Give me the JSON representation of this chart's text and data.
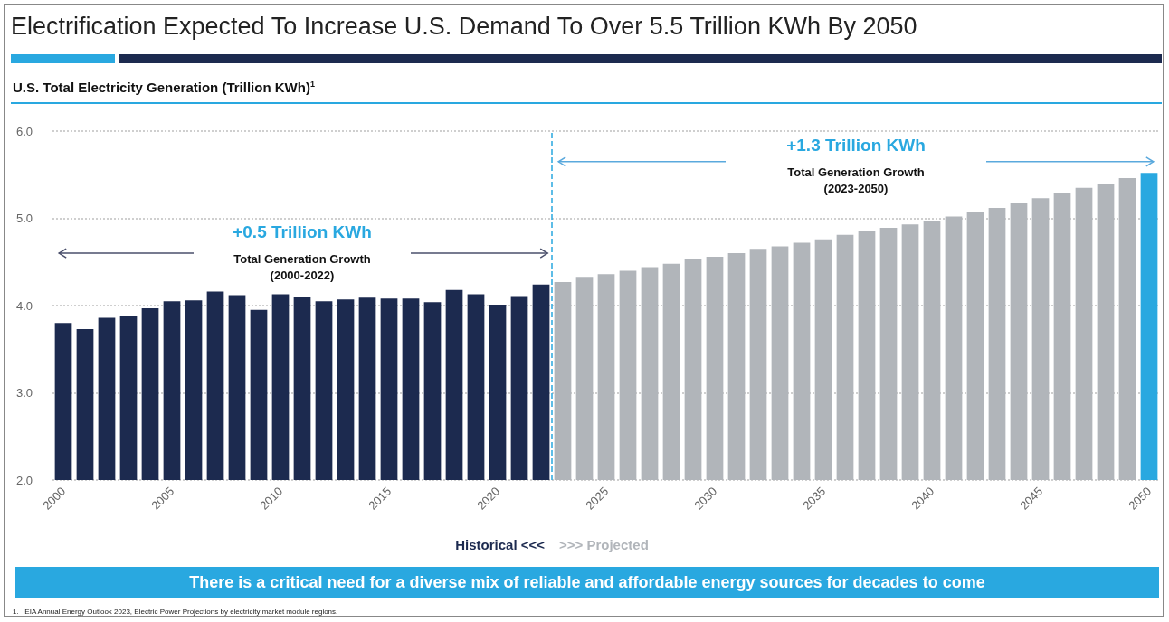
{
  "chart_data": {
    "type": "bar",
    "title": "Electrification Expected To Increase U.S. Demand To Over 5.5 Trillion KWh By 2050",
    "subtitle": "U.S. Total Electricity Generation (Trillion KWh)$^{1}$",
    "x": [
      2000,
      2001,
      2002,
      2003,
      2004,
      2005,
      2006,
      2007,
      2008,
      2009,
      2010,
      2011,
      2012,
      2013,
      2014,
      2015,
      2016,
      2017,
      2018,
      2019,
      2020,
      2021,
      2022,
      2023,
      2024,
      2025,
      2026,
      2027,
      2028,
      2029,
      2030,
      2031,
      2032,
      2033,
      2034,
      2035,
      2036,
      2037,
      2038,
      2039,
      2040,
      2041,
      2042,
      2043,
      2044,
      2045,
      2046,
      2047,
      2048,
      2049,
      2050
    ],
    "values": [
      3.8,
      3.73,
      3.86,
      3.88,
      3.97,
      4.05,
      4.06,
      4.16,
      4.12,
      3.95,
      4.13,
      4.1,
      4.05,
      4.07,
      4.09,
      4.08,
      4.08,
      4.04,
      4.18,
      4.13,
      4.01,
      4.11,
      4.24,
      4.27,
      4.33,
      4.36,
      4.4,
      4.44,
      4.48,
      4.53,
      4.56,
      4.6,
      4.65,
      4.68,
      4.72,
      4.76,
      4.81,
      4.85,
      4.89,
      4.93,
      4.97,
      5.02,
      5.07,
      5.12,
      5.18,
      5.23,
      5.29,
      5.35,
      5.4,
      5.46,
      5.52
    ],
    "colors": [
      "#1c2a4f",
      "#1c2a4f",
      "#1c2a4f",
      "#1c2a4f",
      "#1c2a4f",
      "#1c2a4f",
      "#1c2a4f",
      "#1c2a4f",
      "#1c2a4f",
      "#1c2a4f",
      "#1c2a4f",
      "#1c2a4f",
      "#1c2a4f",
      "#1c2a4f",
      "#1c2a4f",
      "#1c2a4f",
      "#1c2a4f",
      "#1c2a4f",
      "#1c2a4f",
      "#1c2a4f",
      "#1c2a4f",
      "#1c2a4f",
      "#1c2a4f",
      "#b1b5ba",
      "#b1b5ba",
      "#b1b5ba",
      "#b1b5ba",
      "#b1b5ba",
      "#b1b5ba",
      "#b1b5ba",
      "#b1b5ba",
      "#b1b5ba",
      "#b1b5ba",
      "#b1b5ba",
      "#b1b5ba",
      "#b1b5ba",
      "#b1b5ba",
      "#b1b5ba",
      "#b1b5ba",
      "#b1b5ba",
      "#b1b5ba",
      "#b1b5ba",
      "#b1b5ba",
      "#b1b5ba",
      "#b1b5ba",
      "#b1b5ba",
      "#b1b5ba",
      "#b1b5ba",
      "#b1b5ba",
      "#b1b5ba",
      "#29a8e0"
    ],
    "xlim": [
      1999.5,
      2050.5
    ],
    "xticks": [
      2000,
      2005,
      2010,
      2015,
      2020,
      2025,
      2030,
      2035,
      2040,
      2045,
      2050
    ],
    "ylim": [
      2,
      6
    ],
    "yticks": [
      {
        "value": 2,
        "label": "2.0"
      },
      {
        "value": 3,
        "label": "3.0"
      },
      {
        "value": 4,
        "label": "4.0"
      },
      {
        "value": 5,
        "label": "5.0"
      },
      {
        "value": 6,
        "label": "6.0"
      }
    ],
    "grid": "y",
    "ref_lines": [
      {
        "axis": "x",
        "value": 2022.5,
        "label": null,
        "color": "#29a8e0",
        "line_style": "dashed"
      }
    ],
    "annotations": [
      "+0.5 Trillion KWh",
      "Total Generation Growth\n(2000-2022)",
      "+1.3 Trillion KWh",
      "Total Generation Growth\n(2023-2050)",
      "Historical <<<",
      ">>> Projected",
      "There is a critical need for a diverse mix of reliable and affordable energy sources for decades to come",
      "1.   EIA Annual Energy Outlook 2023, Electric Power Projections by electricity market module regions."
    ]
  }
}
